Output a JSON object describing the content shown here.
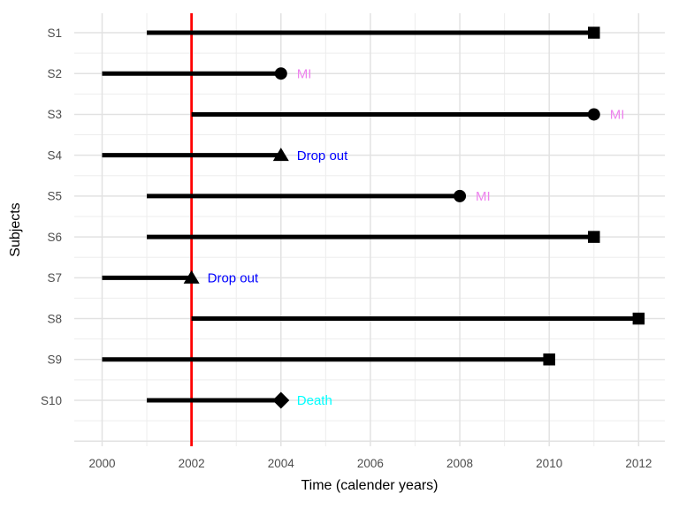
{
  "figure": {
    "x_axis_title": "Time (calender years)",
    "y_axis_title": "Subjects"
  },
  "chart_data": {
    "type": "timeline",
    "title": "",
    "xlabel": "Time (calender years)",
    "ylabel": "Subjects",
    "x_ticks": [
      2000,
      2002,
      2004,
      2006,
      2008,
      2010,
      2012
    ],
    "x_minor_ticks": [
      2001,
      2003,
      2005,
      2007,
      2009,
      2011
    ],
    "x_range": [
      1999.4,
      2012.6
    ],
    "grid": true,
    "legend": "none",
    "reference_line": {
      "x": 2002,
      "color": "#FF0000"
    },
    "timeline_color": "#000000",
    "marker_color": "#000000",
    "tick_label_color": "#4D4D4D",
    "event_colors": {
      "MI": "#EE82EE",
      "Drop out": "#0000FF",
      "Death": "#00FFFF"
    },
    "subjects": [
      {
        "id": "S1",
        "start": 2001,
        "end": 2011,
        "marker": "square",
        "event": null
      },
      {
        "id": "S2",
        "start": 2000,
        "end": 2004,
        "marker": "circle",
        "event": "MI"
      },
      {
        "id": "S3",
        "start": 2002,
        "end": 2011,
        "marker": "circle",
        "event": "MI"
      },
      {
        "id": "S4",
        "start": 2000,
        "end": 2004,
        "marker": "triangle",
        "event": "Drop out"
      },
      {
        "id": "S5",
        "start": 2001,
        "end": 2008,
        "marker": "circle",
        "event": "MI"
      },
      {
        "id": "S6",
        "start": 2001,
        "end": 2011,
        "marker": "square",
        "event": null
      },
      {
        "id": "S7",
        "start": 2000,
        "end": 2002,
        "marker": "triangle",
        "event": "Drop out"
      },
      {
        "id": "S8",
        "start": 2002,
        "end": 2012,
        "marker": "square",
        "event": null
      },
      {
        "id": "S9",
        "start": 2000,
        "end": 2010,
        "marker": "square",
        "event": null
      },
      {
        "id": "S10",
        "start": 2001,
        "end": 2004,
        "marker": "diamond",
        "event": "Death"
      }
    ]
  }
}
